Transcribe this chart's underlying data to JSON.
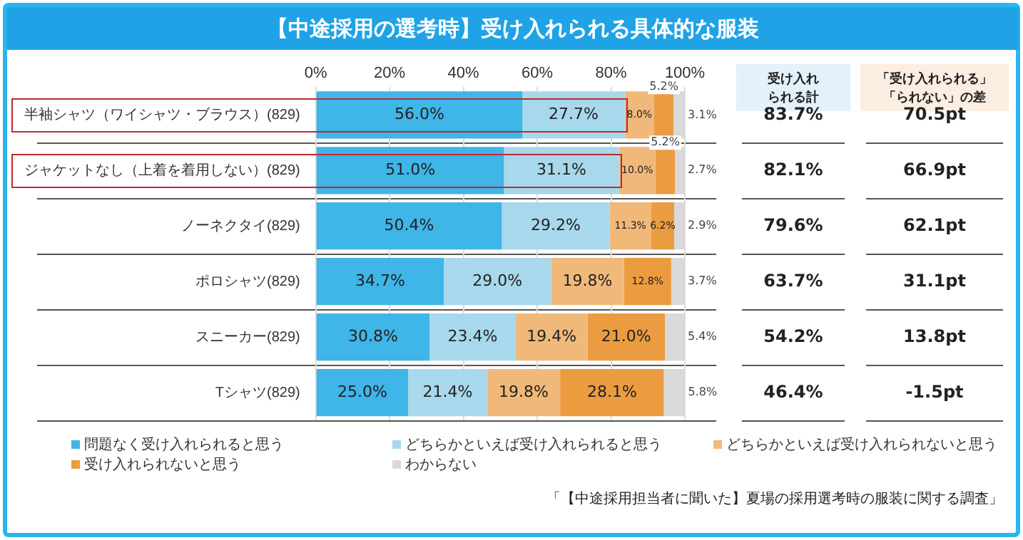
{
  "chart_data": {
    "type": "bar",
    "orientation": "horizontal",
    "stacked": true,
    "title": "【中途採用の選考時】受け入れられる具体的な服装",
    "categories": [
      "半袖シャツ（ワイシャツ・ブラウス）(829)",
      "ジャケットなし（上着を着用しない）(829)",
      "ノーネクタイ(829)",
      "ポロシャツ(829)",
      "スニーカー(829)",
      "Tシャツ(829)"
    ],
    "series": [
      {
        "name": "問題なく受け入れられると思う",
        "color": "#3fb5e8",
        "values": [
          56.0,
          51.0,
          50.4,
          34.7,
          30.8,
          25.0
        ],
        "value_labels": [
          "56.0%",
          "51.0%",
          "50.4%",
          "34.7%",
          "30.8%",
          "25.0%"
        ]
      },
      {
        "name": "どちらかといえば受け入れられると思う",
        "color": "#a8d8ec",
        "values": [
          27.7,
          31.1,
          29.2,
          29.0,
          23.4,
          21.4
        ],
        "value_labels": [
          "27.7%",
          "31.1%",
          "29.2%",
          "29.0%",
          "23.4%",
          "21.4%"
        ]
      },
      {
        "name": "どちらかといえば受け入れられないと思う",
        "color": "#f0b97a",
        "values": [
          8.0,
          10.0,
          11.3,
          19.8,
          19.4,
          19.8
        ],
        "value_labels": [
          "8.0%",
          "10.0%",
          "11.3%",
          "19.8%",
          "19.4%",
          "19.8%"
        ]
      },
      {
        "name": "受け入れられないと思う",
        "color": "#eb9b40",
        "values": [
          5.2,
          5.2,
          6.2,
          12.8,
          21.0,
          28.1
        ],
        "value_labels": [
          "5.2%",
          "5.2%",
          "6.2%",
          "12.8%",
          "21.0%",
          "28.1%"
        ]
      },
      {
        "name": "わからない",
        "color": "#d9d9d9",
        "values": [
          3.1,
          2.7,
          2.9,
          3.7,
          5.4,
          5.8
        ],
        "value_labels": [
          "3.1%",
          "2.7%",
          "2.9%",
          "3.7%",
          "5.4%",
          "5.8%"
        ]
      }
    ],
    "xlim": [
      0,
      100
    ],
    "xticks": [
      {
        "value": 0,
        "label": "0%"
      },
      {
        "value": 20,
        "label": "20%"
      },
      {
        "value": 40,
        "label": "40%"
      },
      {
        "value": 60,
        "label": "60%"
      },
      {
        "value": 80,
        "label": "80%"
      },
      {
        "value": 100,
        "label": "100%"
      }
    ],
    "grid": "x",
    "legend": "bottom",
    "annotations": [
      "受け入れられる計",
      "「受け入れられる」「られない」の差",
      "83.7%",
      "70.5pt",
      "82.1%",
      "66.9pt",
      "79.6%",
      "62.1pt",
      "63.7%",
      "31.1pt",
      "54.2%",
      "13.8pt",
      "46.4%",
      "-1.5pt",
      "「【中途採用担当者に聞いた】夏場の採用選考時の服装に関する調査」"
    ]
  }
}
